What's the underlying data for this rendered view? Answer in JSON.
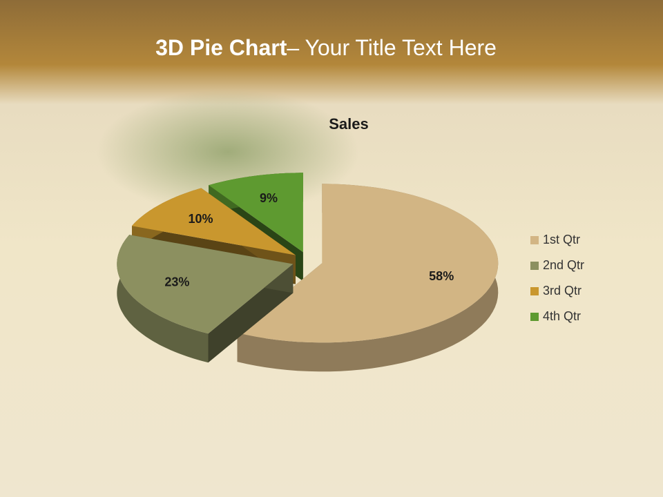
{
  "slide": {
    "title_bold": "3D Pie Chart",
    "title_rest": "– Your Title Text Here"
  },
  "chart_data": {
    "type": "pie",
    "title": "Sales",
    "categories": [
      "1st Qtr",
      "2nd Qtr",
      "3rd Qtr",
      "4th Qtr"
    ],
    "values": [
      58,
      23,
      10,
      9
    ],
    "value_labels": [
      "58%",
      "23%",
      "10%",
      "9%"
    ],
    "colors": [
      "#d2b584",
      "#8c9060",
      "#c9972e",
      "#5e9a30"
    ],
    "legend": "right"
  }
}
